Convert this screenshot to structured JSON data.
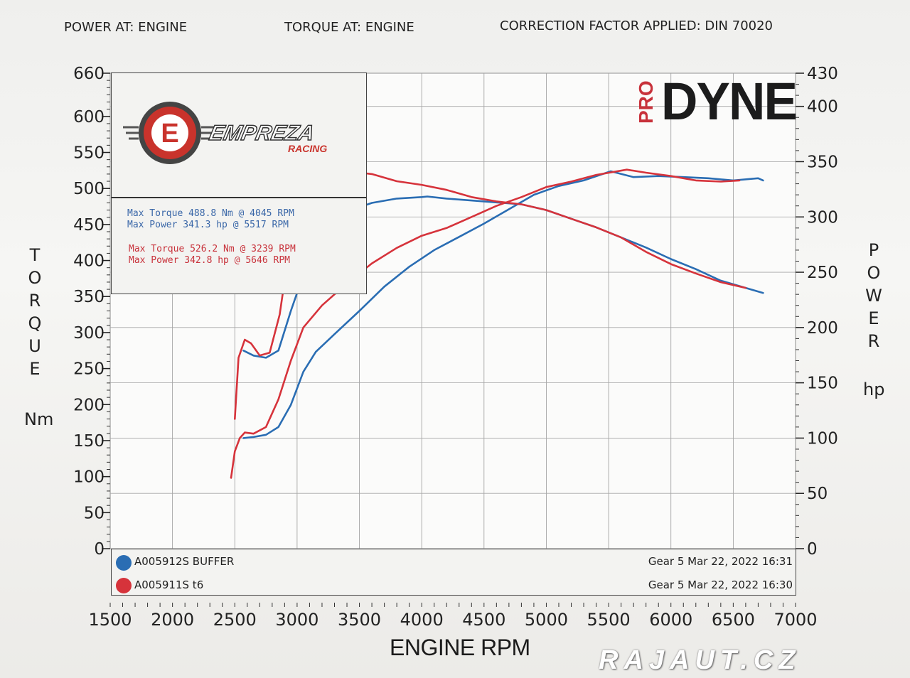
{
  "header": {
    "power_at": "POWER AT: ENGINE",
    "torque_at": "TORQUE AT: ENGINE",
    "correction": "CORRECTION FACTOR APPLIED: DIN 70020"
  },
  "brand": {
    "logo_text": "EMPREZA",
    "logo_sub": "RACING",
    "logo_letter": "E",
    "dyno_pro": "PRO",
    "dyno_name": "DYNE"
  },
  "axes": {
    "left_label": "TORQUE",
    "left_unit": "Nm",
    "right_label": "POWER",
    "right_unit": "hp",
    "x_title": "ENGINE RPM"
  },
  "stats": {
    "blue_torque": "Max Torque 488.8 Nm @ 4045 RPM",
    "blue_power": "Max Power 341.3 hp @ 5517 RPM",
    "red_torque": "Max Torque 526.2 Nm @ 3239 RPM",
    "red_power": "Max Power 342.8 hp @ 5646 RPM"
  },
  "legend": [
    {
      "name": "A005912S BUFFER",
      "info": "Gear 5 Mar 22, 2022 16:31",
      "color": "#2a6db3"
    },
    {
      "name": "A005911S t6",
      "info": "Gear 5 Mar 22, 2022 16:30",
      "color": "#d6333b"
    }
  ],
  "watermark": "RAJAUT.CZ",
  "chart_data": {
    "type": "line",
    "xlabel": "ENGINE RPM",
    "ylabel": "TORQUE Nm",
    "y2label": "POWER hp",
    "xlim": [
      1500,
      7000
    ],
    "ylim": [
      0,
      660
    ],
    "y2lim": [
      0,
      430
    ],
    "x_ticks": [
      1500,
      2000,
      2500,
      3000,
      3500,
      4000,
      4500,
      5000,
      5500,
      6000,
      6500,
      7000
    ],
    "y_ticks": [
      0,
      50,
      100,
      150,
      200,
      250,
      300,
      350,
      400,
      450,
      500,
      550,
      600,
      660
    ],
    "y2_ticks": [
      0,
      50,
      100,
      150,
      200,
      250,
      300,
      350,
      400,
      430
    ],
    "grid": true,
    "series": [
      {
        "name": "A005912S BUFFER",
        "quantity": "torque",
        "axis": "left",
        "color": "#2a6db3",
        "x": [
          2570,
          2650,
          2750,
          2850,
          2950,
          3050,
          3200,
          3400,
          3600,
          3800,
          4000,
          4045,
          4200,
          4500,
          4800,
          5000,
          5200,
          5400,
          5600,
          5800,
          6000,
          6200,
          6400,
          6600,
          6740
        ],
        "y": [
          275,
          268,
          265,
          275,
          330,
          380,
          430,
          468,
          480,
          486,
          488,
          488.8,
          486,
          482,
          478,
          470,
          458,
          446,
          432,
          418,
          402,
          388,
          372,
          362,
          355
        ]
      },
      {
        "name": "A005912S BUFFER",
        "quantity": "power",
        "axis": "right",
        "color": "#2a6db3",
        "x": [
          2570,
          2650,
          2750,
          2850,
          2950,
          3050,
          3150,
          3300,
          3500,
          3700,
          3900,
          4100,
          4300,
          4500,
          4700,
          4900,
          5100,
          5300,
          5517,
          5700,
          5900,
          6100,
          6300,
          6500,
          6700,
          6740
        ],
        "y": [
          100,
          101,
          103,
          110,
          130,
          160,
          178,
          194,
          215,
          237,
          255,
          270,
          282,
          294,
          307,
          320,
          328,
          333,
          341.3,
          336,
          337,
          336,
          335,
          333,
          335,
          333
        ]
      },
      {
        "name": "A005911S t6",
        "quantity": "torque",
        "axis": "left",
        "color": "#d6333b",
        "x": [
          2500,
          2530,
          2580,
          2630,
          2700,
          2780,
          2860,
          2940,
          3050,
          3150,
          3239,
          3400,
          3600,
          3800,
          4000,
          4200,
          4400,
          4600,
          4800,
          5000,
          5200,
          5400,
          5600,
          5800,
          6000,
          6200,
          6400,
          6600
        ],
        "y": [
          180,
          265,
          290,
          285,
          268,
          272,
          325,
          420,
          505,
          522,
          526.2,
          524,
          520,
          510,
          505,
          498,
          488,
          482,
          478,
          470,
          458,
          446,
          432,
          412,
          395,
          382,
          370,
          362
        ]
      },
      {
        "name": "A005911S t6",
        "quantity": "power",
        "axis": "right",
        "color": "#d6333b",
        "x": [
          2470,
          2500,
          2540,
          2580,
          2650,
          2750,
          2850,
          2950,
          3050,
          3200,
          3400,
          3600,
          3800,
          4000,
          4200,
          4400,
          4600,
          4800,
          5000,
          5200,
          5400,
          5646,
          5800,
          6000,
          6200,
          6400,
          6550
        ],
        "y": [
          64,
          88,
          100,
          105,
          104,
          110,
          135,
          170,
          200,
          220,
          240,
          258,
          272,
          283,
          290,
          300,
          310,
          318,
          327,
          332,
          338,
          342.8,
          340,
          337,
          333,
          332,
          333
        ]
      }
    ]
  }
}
